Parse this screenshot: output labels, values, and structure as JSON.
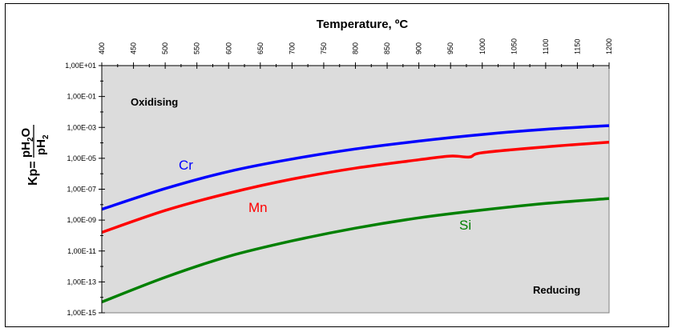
{
  "chart_data": {
    "type": "line",
    "title": "Temperature, ºC",
    "xlabel": "Temperature, ºC",
    "ylabel": {
      "prefix": "Kp=",
      "numerator": "pH",
      "numerator_sub": "2",
      "numerator_tail": "O",
      "denominator": "pH",
      "denominator_sub": "2"
    },
    "x_ticks": [
      400,
      450,
      500,
      550,
      600,
      650,
      700,
      750,
      800,
      850,
      900,
      950,
      1000,
      1050,
      1100,
      1150,
      1200
    ],
    "y_ticks": [
      "1,00E+01",
      "1,00E-01",
      "1,00E-03",
      "1,00E-05",
      "1,00E-07",
      "1,00E-09",
      "1,00E-11",
      "1,00E-13",
      "1,00E-15"
    ],
    "y_scale": "log",
    "xlim": [
      400,
      1200
    ],
    "ylim": [
      1e-15,
      10
    ],
    "x_axis_position": "top",
    "plot_background": "#dcdcdc",
    "annotations": {
      "top_left": "Oxidising",
      "bottom_right": "Reducing"
    },
    "series": [
      {
        "name": "Cr",
        "color": "#0000ff",
        "x": [
          400,
          500,
          600,
          700,
          800,
          900,
          1000,
          1100,
          1200
        ],
        "y": [
          5e-09,
          1.1e-07,
          1.4e-06,
          9e-06,
          4e-05,
          0.00013,
          0.00035,
          0.00076,
          0.0013
        ]
      },
      {
        "name": "Mn",
        "color": "#ff0000",
        "x": [
          400,
          500,
          600,
          700,
          800,
          900,
          950,
          980,
          1000,
          1100,
          1200
        ],
        "y": [
          1.6e-10,
          4.2e-09,
          5.5e-08,
          4.5e-07,
          2.3e-06,
          8e-06,
          1.4e-05,
          1.2e-05,
          2.3e-05,
          5.5e-05,
          0.00011
        ]
      },
      {
        "name": "Si",
        "color": "#008000",
        "x": [
          400,
          500,
          600,
          700,
          800,
          900,
          1000,
          1100,
          1200
        ],
        "y": [
          5e-15,
          2e-13,
          4.5e-12,
          4.5e-11,
          3e-10,
          1.4e-09,
          4.5e-09,
          1.2e-08,
          2.5e-08
        ]
      }
    ]
  }
}
